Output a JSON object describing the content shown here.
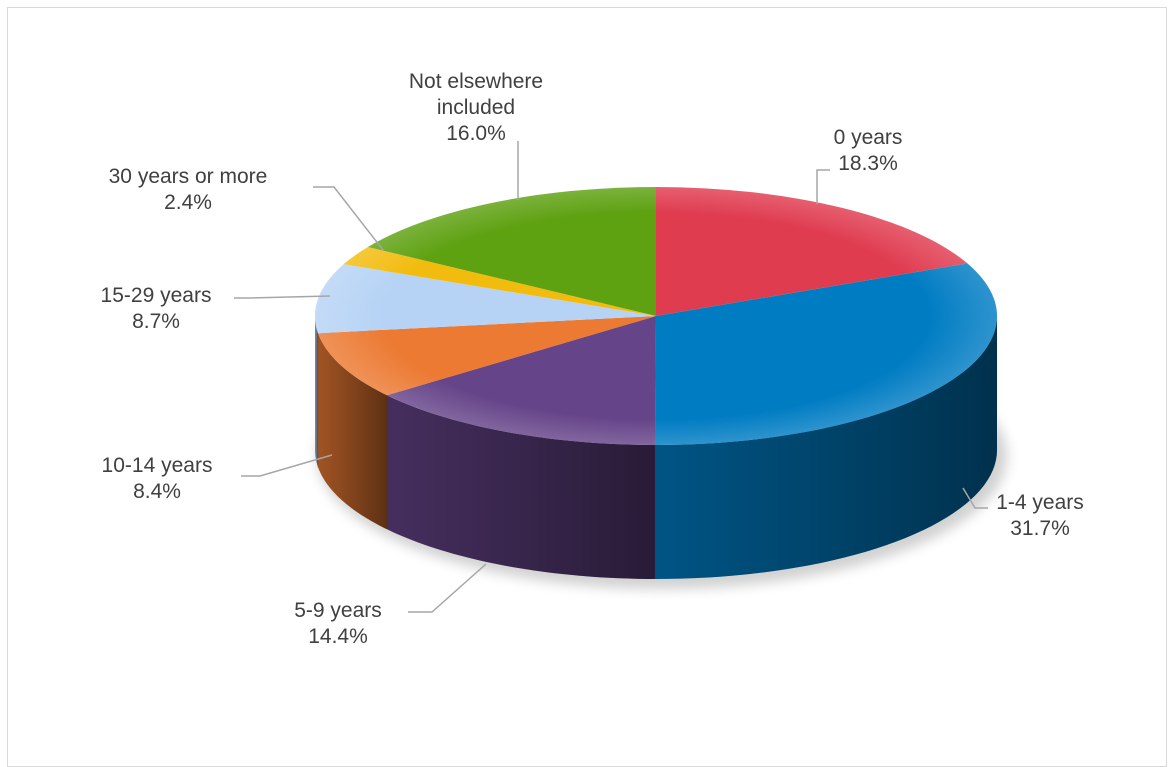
{
  "chart_data": {
    "type": "pie",
    "variant": "3d",
    "title": "",
    "unit": "%",
    "slices": [
      {
        "label": "0 years",
        "value": 18.3,
        "value_label": "18.3%",
        "color": "#E03C50"
      },
      {
        "label": "1-4 years",
        "value": 31.7,
        "value_label": "31.7%",
        "color": "#007CC3"
      },
      {
        "label": "5-9 years",
        "value": 14.4,
        "value_label": "14.4%",
        "color": "#664489"
      },
      {
        "label": "10-14 years",
        "value": 8.4,
        "value_label": "8.4%",
        "color": "#EC7A33"
      },
      {
        "label": "15-29 years",
        "value": 8.7,
        "value_label": "8.7%",
        "color": "#B6D3F5"
      },
      {
        "label": "30 years or more",
        "value": 2.4,
        "value_label": "2.4%",
        "color": "#F2BC0F"
      },
      {
        "label": "Not elsewhere included",
        "value": 16.0,
        "value_label": "16.0%",
        "color": "#5EA111"
      }
    ],
    "start": "12 o'clock",
    "direction": "clockwise",
    "legend": "none (labels beside slices with leader lines)",
    "grid": false,
    "border_color": "#D9D9D9",
    "label_color": "#404040",
    "leader_color": "#A6A6A6"
  }
}
